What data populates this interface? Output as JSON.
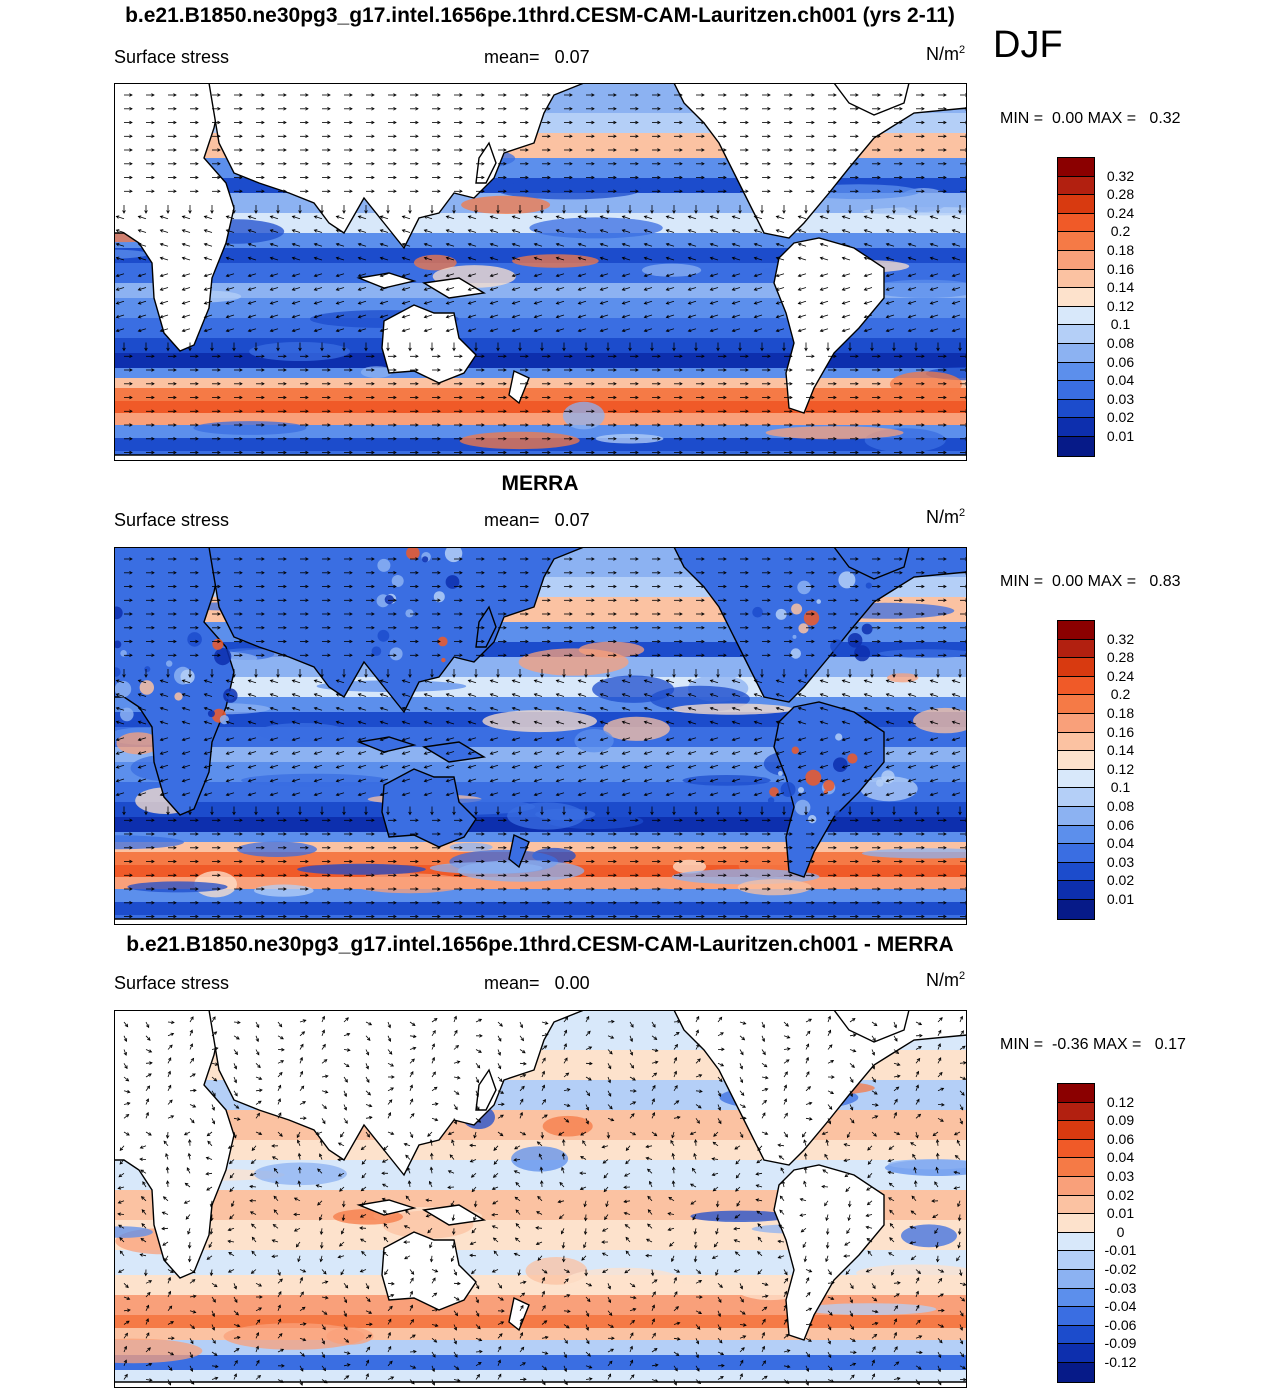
{
  "season": "DJF",
  "panels": [
    {
      "title": "b.e21.B1850.ne30pg3_g17.intel.1656pe.1thrd.CESM-CAM-Lauritzen.ch001 (yrs 2-11)",
      "variable": "Surface stress",
      "mean_label": "mean=",
      "mean_value": "0.07",
      "units": "N/m",
      "units_sup": "2",
      "min_label": "MIN =",
      "min_value": "0.00",
      "max_label": "MAX =",
      "max_value": "0.32",
      "levels": [
        "0.32",
        "0.28",
        "0.24",
        "0.2",
        "0.18",
        "0.16",
        "0.14",
        "0.12",
        "0.1",
        "0.08",
        "0.06",
        "0.04",
        "0.03",
        "0.02",
        "0.01"
      ],
      "colors": [
        "#8b0000",
        "#b22010",
        "#d83a10",
        "#f05a28",
        "#f57a46",
        "#f9a07a",
        "#fbc2a2",
        "#fde2cc",
        "#d8e8fa",
        "#b4cff7",
        "#8cb2f2",
        "#5c8fec",
        "#3a6ee2",
        "#1c4ccc",
        "#0d2fae",
        "#061a88"
      ]
    },
    {
      "title": "MERRA",
      "variable": "Surface stress",
      "mean_label": "mean=",
      "mean_value": "0.07",
      "units": "N/m",
      "units_sup": "2",
      "min_label": "MIN =",
      "min_value": "0.00",
      "max_label": "MAX =",
      "max_value": "0.83",
      "levels": [
        "0.32",
        "0.28",
        "0.24",
        "0.2",
        "0.18",
        "0.16",
        "0.14",
        "0.12",
        "0.1",
        "0.08",
        "0.06",
        "0.04",
        "0.03",
        "0.02",
        "0.01"
      ],
      "colors": [
        "#8b0000",
        "#b22010",
        "#d83a10",
        "#f05a28",
        "#f57a46",
        "#f9a07a",
        "#fbc2a2",
        "#fde2cc",
        "#d8e8fa",
        "#b4cff7",
        "#8cb2f2",
        "#5c8fec",
        "#3a6ee2",
        "#1c4ccc",
        "#0d2fae",
        "#061a88"
      ]
    },
    {
      "title": "b.e21.B1850.ne30pg3_g17.intel.1656pe.1thrd.CESM-CAM-Lauritzen.ch001 - MERRA",
      "variable": "Surface stress",
      "mean_label": "mean=",
      "mean_value": "0.00",
      "units": "N/m",
      "units_sup": "2",
      "min_label": "MIN =",
      "min_value": "-0.36",
      "max_label": "MAX =",
      "max_value": "0.17",
      "levels": [
        "0.12",
        "0.09",
        "0.06",
        "0.04",
        "0.03",
        "0.02",
        "0.01",
        "0",
        "-0.01",
        "-0.02",
        "-0.03",
        "-0.04",
        "-0.06",
        "-0.09",
        "-0.12"
      ],
      "colors": [
        "#8b0000",
        "#b22010",
        "#d83a10",
        "#f05a28",
        "#f57a46",
        "#f9a07a",
        "#fbc2a2",
        "#fde2cc",
        "#d8e8fa",
        "#b4cff7",
        "#8cb2f2",
        "#5c8fec",
        "#3a6ee2",
        "#1c4ccc",
        "#0d2fae",
        "#061a88"
      ]
    }
  ]
}
